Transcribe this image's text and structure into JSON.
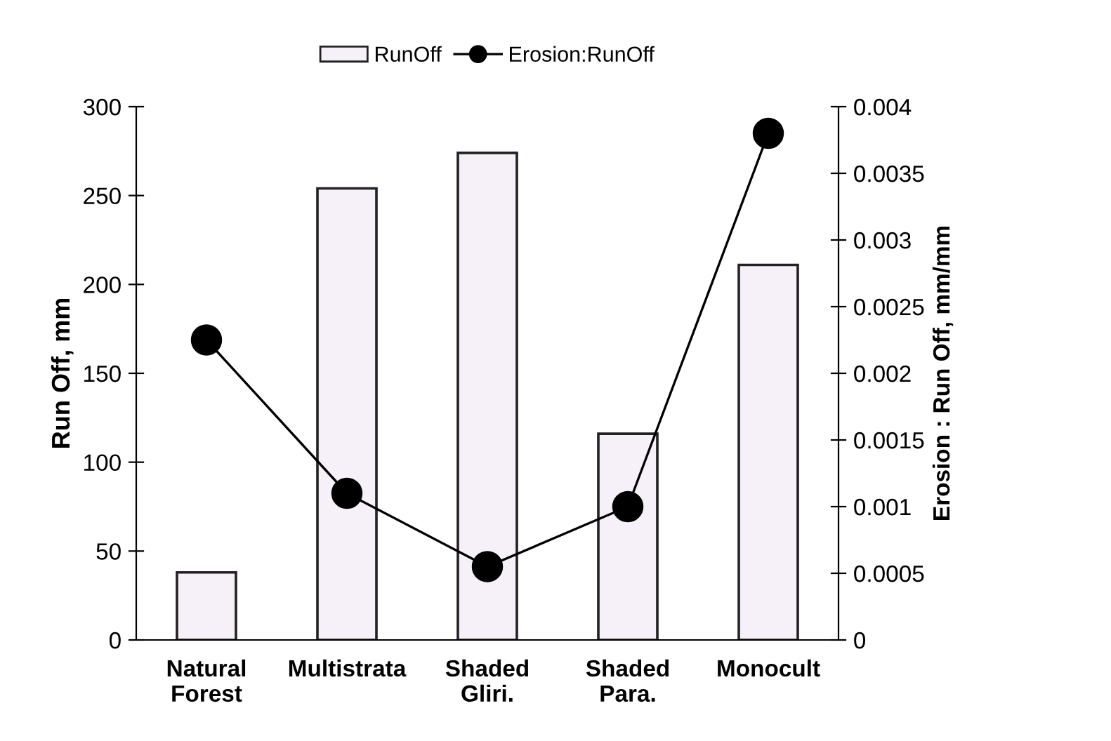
{
  "chart_data": {
    "type": "bar",
    "categories": [
      "Natural\nForest",
      "Multistrata",
      "Shaded\nGliri.",
      "Shaded\nPara.",
      "Monocult"
    ],
    "ylabel": "Run Off, mm",
    "y2label": "Erosion : Run Off, mm/mm",
    "series": [
      {
        "name": "RunOff",
        "color": "#f6f0f8",
        "values": [
          38,
          254,
          274,
          116,
          211
        ]
      },
      {
        "name": "Erosion:RunOff",
        "type": "line",
        "axis": "y2",
        "color": "#000000",
        "values": [
          0.00225,
          0.0011,
          0.00055,
          0.001,
          0.0038
        ]
      }
    ],
    "ylim": [
      0,
      300
    ],
    "yticks": [
      0,
      50,
      100,
      150,
      200,
      250,
      300
    ],
    "y2lim": [
      0,
      0.004
    ],
    "y2ticks": [
      {
        "value": 0,
        "label": "0"
      },
      {
        "value": 0.0005,
        "label": "0.0005"
      },
      {
        "value": 0.001,
        "label": "0.001"
      },
      {
        "value": 0.0015,
        "label": "0.0015"
      },
      {
        "value": 0.002,
        "label": "0.002"
      },
      {
        "value": 0.0025,
        "label": "0.0025"
      },
      {
        "value": 0.003,
        "label": "0.003"
      },
      {
        "value": 0.0035,
        "label": "0.0035"
      },
      {
        "value": 0.004,
        "label": "0.004"
      }
    ],
    "legend": "top",
    "grid": false,
    "marker": "circle",
    "line_style": "solid"
  }
}
